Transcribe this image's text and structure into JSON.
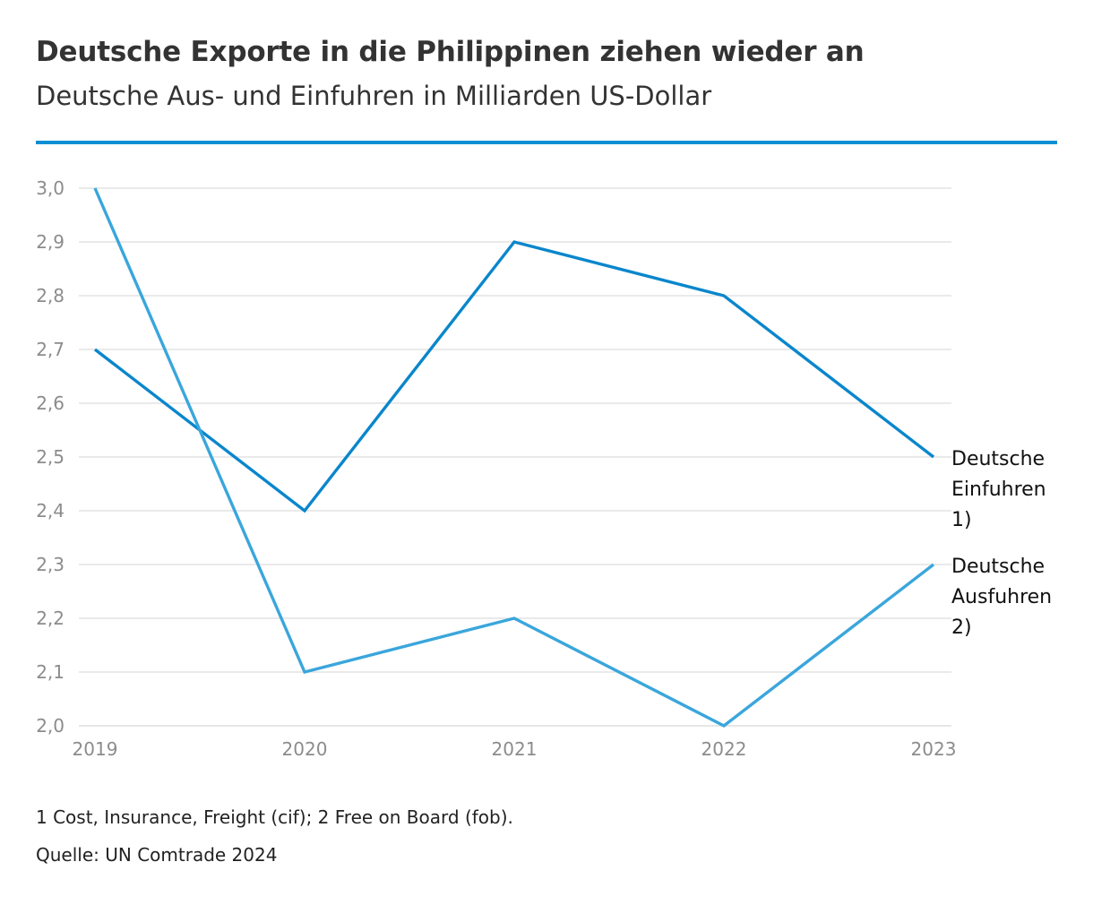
{
  "title": "Deutsche Exporte in die Philippinen ziehen wieder an",
  "subtitle": "Deutsche Aus- und Einfuhren in Milliarden US-Dollar",
  "footnote": "1 Cost, Insurance, Freight (cif); 2 Free on Board (fob).",
  "source": "Quelle: UN Comtrade 2024",
  "colors": {
    "rule": "#0a8fd4",
    "einfuhren": "#0a86cc",
    "ausfuhren": "#3aa6dc",
    "grid": "#dedede",
    "tick": "#8c8c8c"
  },
  "chart_data": {
    "type": "line",
    "x": [
      "2019",
      "2020",
      "2021",
      "2022",
      "2023"
    ],
    "ylim": [
      2.0,
      3.0
    ],
    "yticks": [
      "2,0",
      "2,1",
      "2,2",
      "2,3",
      "2,4",
      "2,5",
      "2,6",
      "2,7",
      "2,8",
      "2,9",
      "3,0"
    ],
    "grid": true,
    "legend": "inline-right",
    "series": [
      {
        "name": "Deutsche Einfuhren 1)",
        "label_lines": [
          "Deutsche",
          "Einfuhren",
          "1)"
        ],
        "values": [
          2.7,
          2.4,
          2.9,
          2.8,
          2.5
        ]
      },
      {
        "name": "Deutsche Ausfuhren 2)",
        "label_lines": [
          "Deutsche",
          "Ausfuhren",
          "2)"
        ],
        "values": [
          3.0,
          2.1,
          2.2,
          2.0,
          2.3
        ]
      }
    ]
  }
}
